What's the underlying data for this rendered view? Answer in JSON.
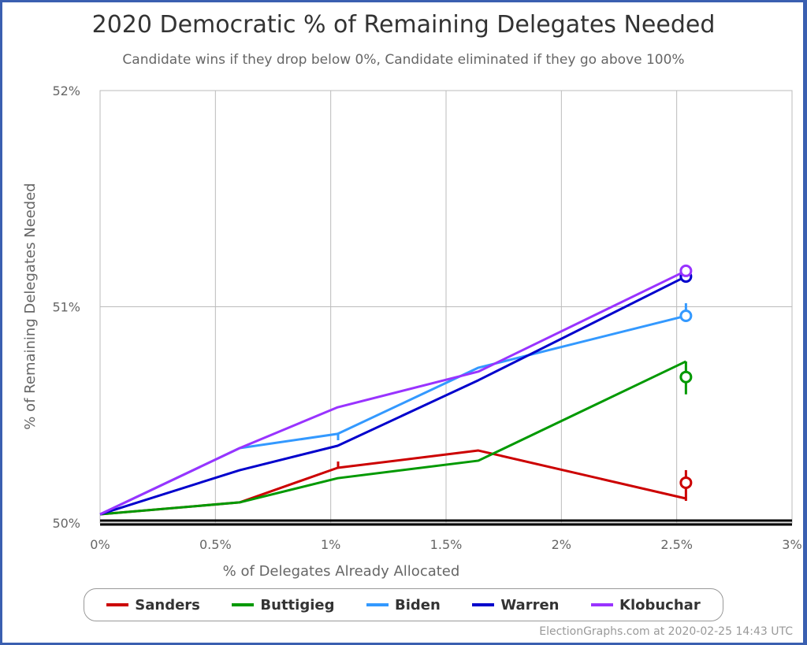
{
  "title": "2020 Democratic % of Remaining Delegates Needed",
  "subtitle": "Candidate wins if they drop below 0%, Candidate eliminated if they go above 100%",
  "credit": "ElectionGraphs.com at 2020-02-25 14:43 UTC",
  "chart_data": {
    "type": "line",
    "title": "2020 Democratic % of Remaining Delegates Needed",
    "subtitle": "Candidate wins if they drop below 0%, Candidate eliminated if they go above 100%",
    "xlabel": "% of Delegates Already Allocated",
    "ylabel": "% of Remaining Delegates Needed",
    "xlim": [
      0,
      3
    ],
    "ylim": [
      50,
      52
    ],
    "x_ticks": [
      "0%",
      "0.5%",
      "1%",
      "1.5%",
      "2%",
      "2.5%",
      "3%"
    ],
    "y_ticks": [
      "50%",
      "51%",
      "52%"
    ],
    "grid": true,
    "legend_position": "bottom",
    "x": [
      0,
      0.605,
      1.03,
      1.64,
      2.54
    ],
    "series": [
      {
        "name": "Sanders",
        "color": "#cc0000",
        "values": [
          50.04,
          50.095,
          50.255,
          50.335,
          50.113
        ],
        "marker": 50.186
      },
      {
        "name": "Buttigieg",
        "color": "#009900",
        "values": [
          50.04,
          50.095,
          50.207,
          50.288,
          50.747
        ],
        "marker": 50.675
      },
      {
        "name": "Biden",
        "color": "#3399ff",
        "values": [
          50.04,
          50.346,
          50.412,
          50.718,
          50.958
        ],
        "marker": 50.958
      },
      {
        "name": "Warren",
        "color": "#0000cc",
        "values": [
          50.04,
          50.244,
          50.357,
          50.66,
          51.14
        ],
        "marker": 51.14
      },
      {
        "name": "Klobuchar",
        "color": "#9933ff",
        "values": [
          50.04,
          50.346,
          50.535,
          50.7,
          51.166
        ],
        "marker": 51.166
      }
    ]
  }
}
